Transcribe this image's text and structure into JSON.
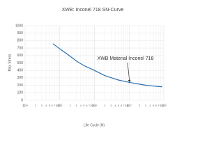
{
  "chart_data": {
    "type": "line",
    "title": "XWB: Inconel 718 SN-Curve",
    "xlabel": "Life Cycle (N)",
    "ylabel": "Max Stress",
    "annotation": "XWB Material Inconel 718",
    "x": [
      63000,
      100000,
      200000,
      316000,
      500000,
      1000000,
      2000000,
      3160000,
      5000000,
      10000000,
      20000000,
      31600000,
      50000000,
      90000000
    ],
    "values": [
      760,
      690,
      590,
      520,
      465,
      400,
      330,
      300,
      270,
      240,
      215,
      200,
      190,
      180
    ],
    "color": "#2a6fb0",
    "xscale": "log",
    "xlim": [
      10000,
      100000000
    ],
    "xticks": [
      {
        "value": 10000,
        "label": "10⁴"
      },
      {
        "value": 20000,
        "label": "2"
      },
      {
        "value": 30000,
        "label": "3"
      },
      {
        "value": 40000,
        "label": "4"
      },
      {
        "value": 50000,
        "label": "5"
      },
      {
        "value": 60000,
        "label": "6"
      },
      {
        "value": 70000,
        "label": "7"
      },
      {
        "value": 80000,
        "label": "8"
      },
      {
        "value": 90000,
        "label": "9"
      },
      {
        "value": 100000,
        "label": "10⁵"
      },
      {
        "value": 200000,
        "label": "2"
      },
      {
        "value": 300000,
        "label": "3"
      },
      {
        "value": 400000,
        "label": "4"
      },
      {
        "value": 500000,
        "label": "5"
      },
      {
        "value": 600000,
        "label": "6"
      },
      {
        "value": 700000,
        "label": "7"
      },
      {
        "value": 800000,
        "label": "8"
      },
      {
        "value": 900000,
        "label": "9"
      },
      {
        "value": 1000000,
        "label": "10⁶"
      },
      {
        "value": 2000000,
        "label": "2"
      },
      {
        "value": 3000000,
        "label": "3"
      },
      {
        "value": 4000000,
        "label": "4"
      },
      {
        "value": 5000000,
        "label": "5"
      },
      {
        "value": 6000000,
        "label": "6"
      },
      {
        "value": 7000000,
        "label": "7"
      },
      {
        "value": 8000000,
        "label": "8"
      },
      {
        "value": 9000000,
        "label": "9"
      },
      {
        "value": 10000000,
        "label": "10⁷"
      },
      {
        "value": 20000000,
        "label": "2"
      },
      {
        "value": 30000000,
        "label": "3"
      },
      {
        "value": 40000000,
        "label": "4"
      },
      {
        "value": 50000000,
        "label": "5"
      },
      {
        "value": 60000000,
        "label": "6"
      },
      {
        "value": 70000000,
        "label": "7"
      },
      {
        "value": 80000000,
        "label": "8"
      },
      {
        "value": 90000000,
        "label": "9"
      },
      {
        "value": 100000000,
        "label": "10⁸"
      }
    ],
    "ylim": [
      0,
      1000
    ],
    "yticks": [
      0,
      100,
      200,
      300,
      400,
      500,
      600,
      700,
      800,
      900,
      1000
    ],
    "grid": true
  }
}
